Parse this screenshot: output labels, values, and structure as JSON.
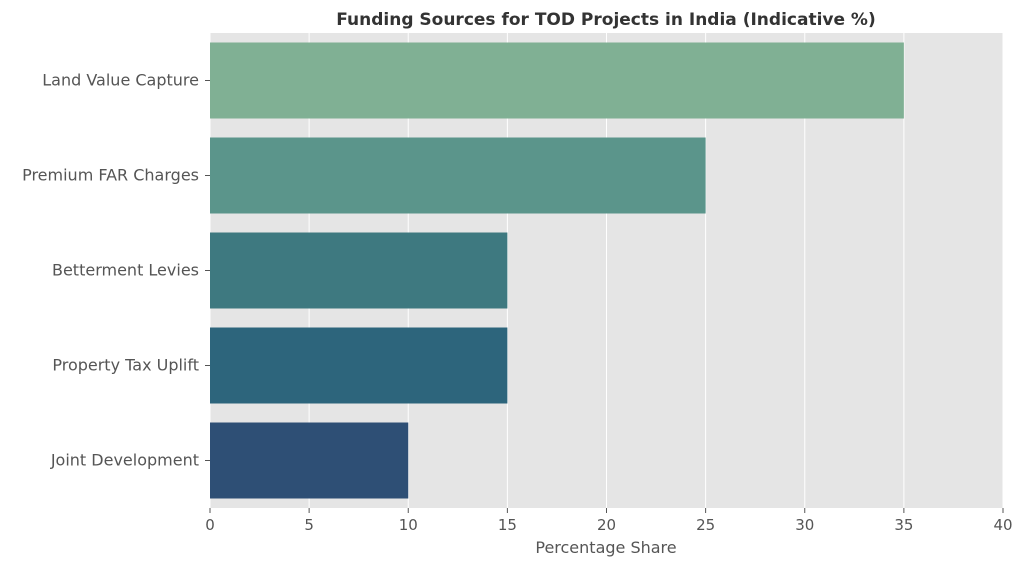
{
  "chart_data": {
    "type": "bar",
    "orientation": "horizontal",
    "title": "Funding Sources for TOD Projects in India (Indicative %)",
    "xlabel": "Percentage Share",
    "ylabel": "",
    "categories": [
      "Land Value Capture",
      "Premium FAR Charges",
      "Betterment Levies",
      "Property Tax Uplift",
      "Joint Development"
    ],
    "values": [
      35,
      25,
      15,
      15,
      10
    ],
    "colors": [
      "#80b094",
      "#5b958b",
      "#3e7980",
      "#2d657c",
      "#2e4f75"
    ],
    "xlim": [
      0,
      40
    ],
    "xticks": [
      0,
      5,
      10,
      15,
      20,
      25,
      30,
      35,
      40
    ],
    "grid": true,
    "background": "#e5e5e5"
  }
}
